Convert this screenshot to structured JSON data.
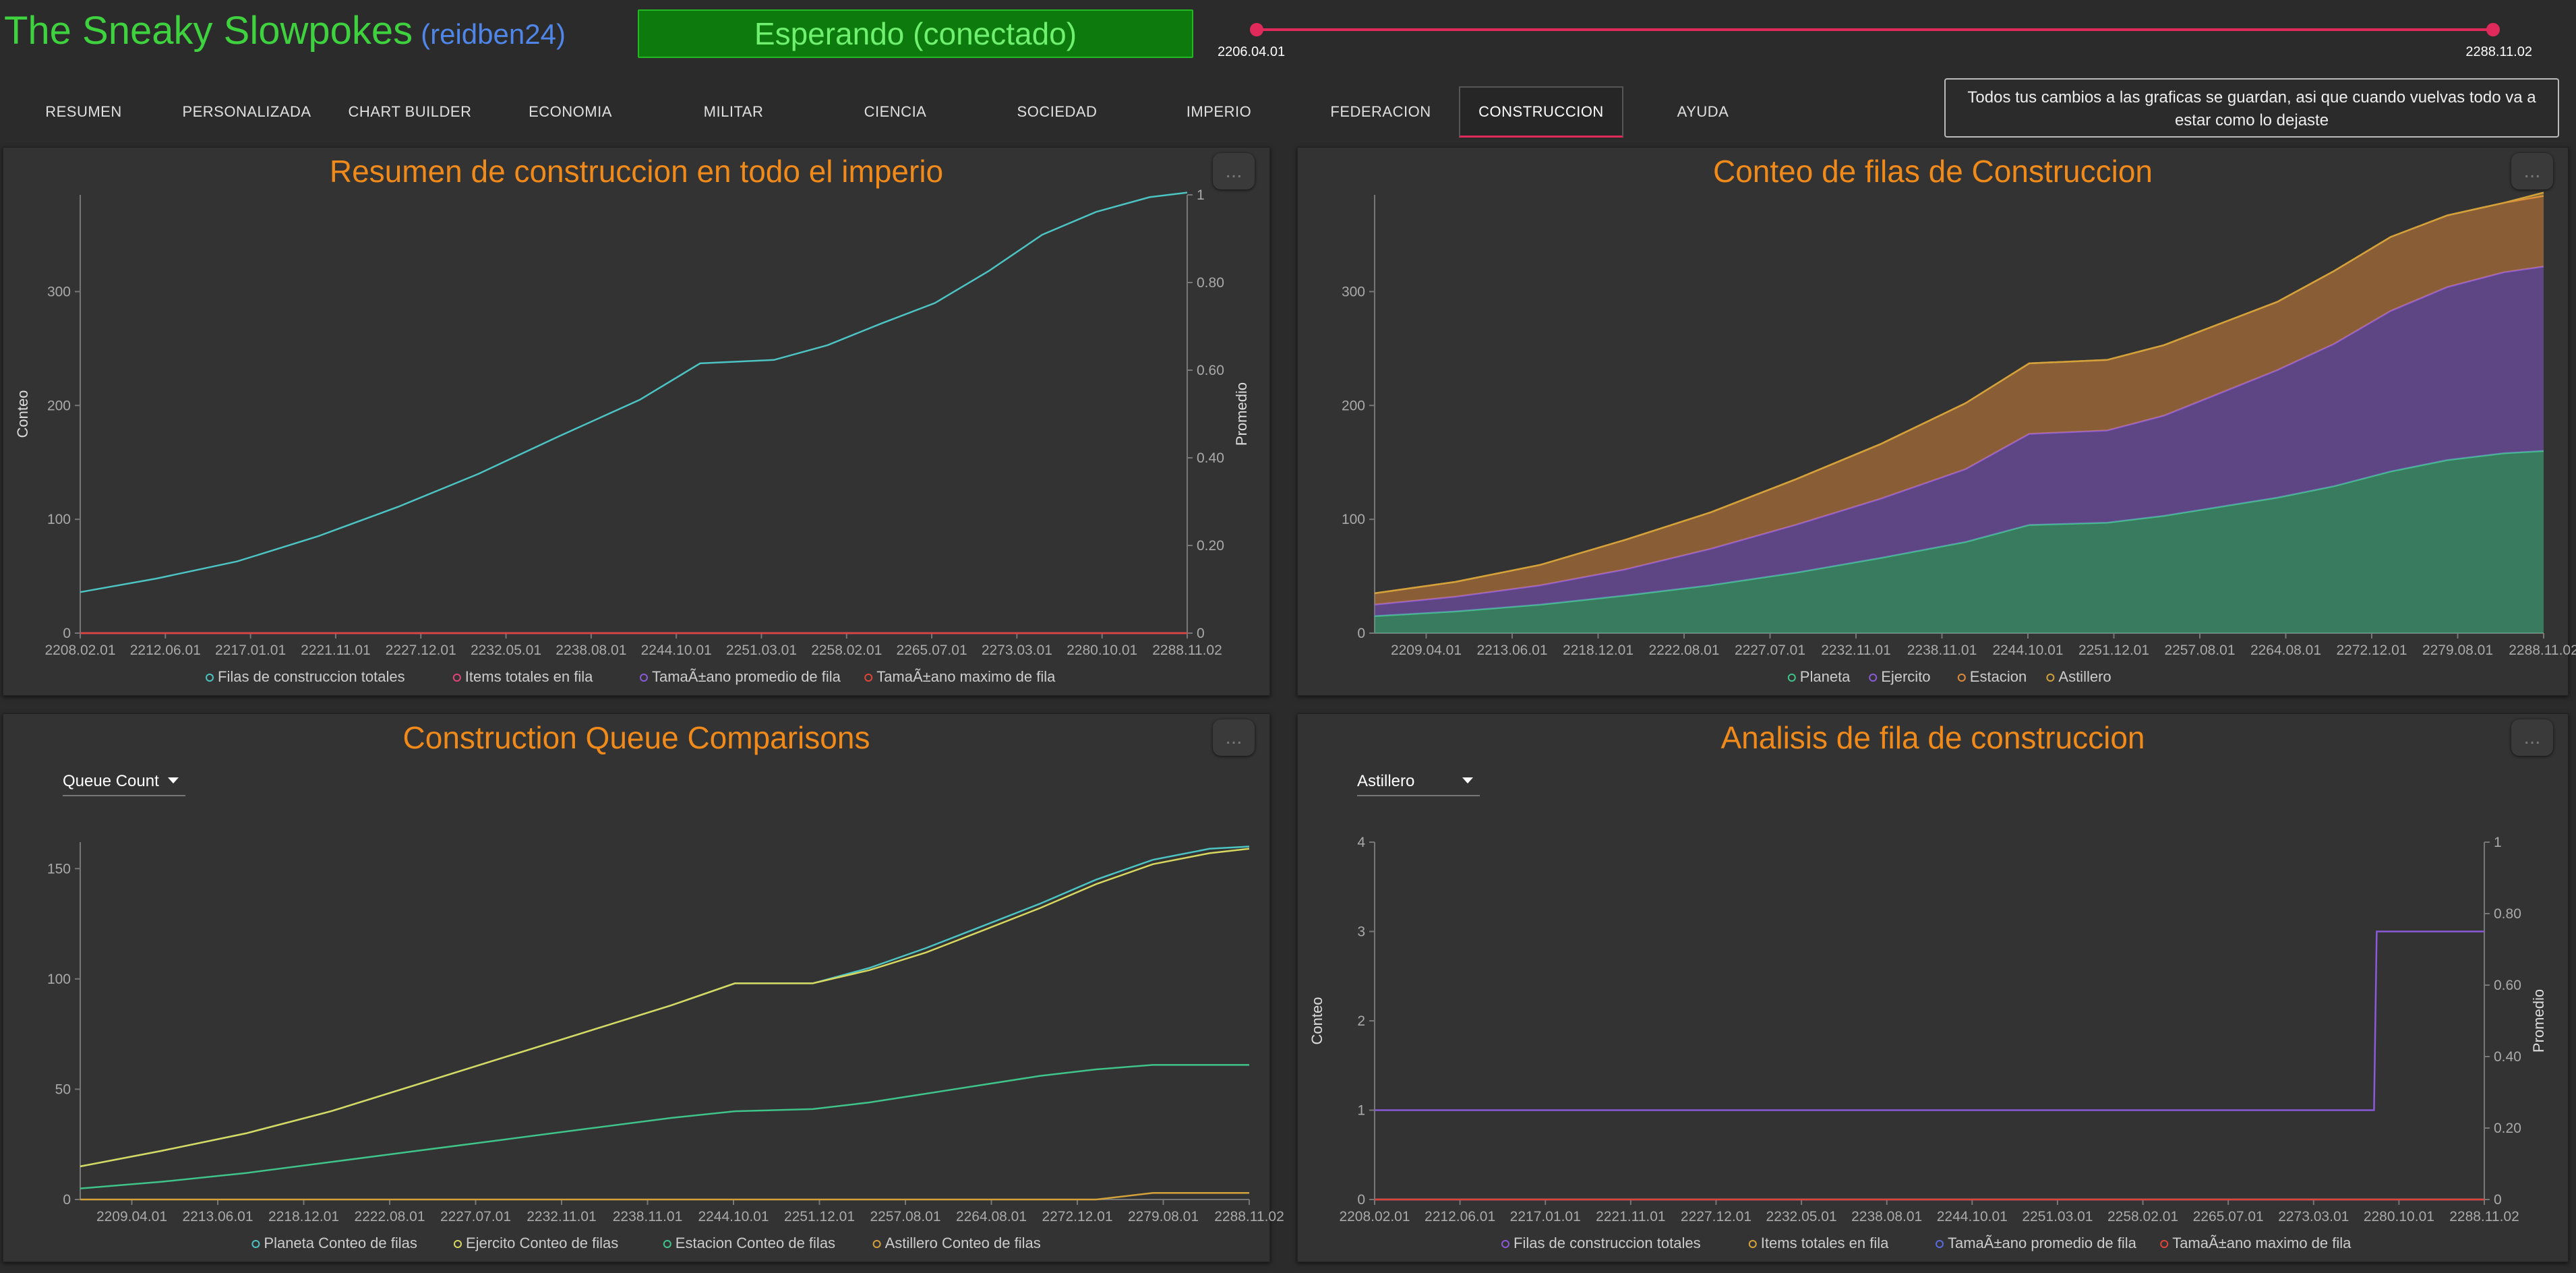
{
  "header": {
    "title": "The Sneaky Slowpokes",
    "user": "(reidben24)",
    "status_button": "Esperando (conectado)",
    "range": {
      "start": "2206.04.01",
      "end": "2288.11.02"
    }
  },
  "nav": {
    "tabs": [
      "RESUMEN",
      "PERSONALIZADA",
      "CHART BUILDER",
      "ECONOMIA",
      "MILITAR",
      "CIENCIA",
      "SOCIEDAD",
      "IMPERIO",
      "FEDERACION",
      "CONSTRUCCION",
      "AYUDA"
    ],
    "active": "CONSTRUCCION"
  },
  "notice": "Todos tus cambios a las graficas se guardan, asi que cuando vuelvas todo va a estar como lo dejaste",
  "more_label": "...",
  "colors": {
    "teal": "#4dc4c4",
    "pink": "#e0457a",
    "purple": "#8a5ad8",
    "red": "#e0453a",
    "green": "#3fc48a",
    "orange": "#e08a3a",
    "gold": "#d4a23a",
    "yellow": "#d8d860",
    "blue": "#5a6ae0"
  },
  "panels": {
    "p1": {
      "title": "Resumen de construccion en todo el imperio"
    },
    "p2": {
      "title": "Conteo de filas de Construccion"
    },
    "p3": {
      "title": "Construction Queue Comparisons",
      "dropdown": "Queue Count"
    },
    "p4": {
      "title": "Analisis de fila de construccion",
      "dropdown": "Astillero"
    }
  },
  "chart_data": [
    {
      "type": "line",
      "title": "Resumen de construccion en todo el imperio",
      "ylabel": "Conteo",
      "y2label": "Promedio",
      "ylim": [
        0,
        385
      ],
      "y2lim": [
        0,
        1
      ],
      "yticks": [
        "0",
        "100",
        "200",
        "300"
      ],
      "y2ticks": [
        "0",
        "0.20",
        "0.40",
        "0.60",
        "0.80",
        "1"
      ],
      "xticks": [
        "2208.02.01",
        "2212.06.01",
        "2217.01.01",
        "2221.11.01",
        "2227.12.01",
        "2232.05.01",
        "2238.08.01",
        "2244.10.01",
        "2251.03.01",
        "2258.02.01",
        "2265.07.01",
        "2273.03.01",
        "2280.10.01",
        "2288.11.02"
      ],
      "x": [
        2206.3,
        2212,
        2218,
        2224,
        2230,
        2236,
        2242,
        2248,
        2252.5,
        2258,
        2262,
        2266,
        2270,
        2274,
        2278,
        2282,
        2286,
        2288.8
      ],
      "series": [
        {
          "name": "Filas de construccion totales",
          "color": "#4dc4c4",
          "values": [
            36,
            48,
            63,
            85,
            111,
            140,
            173,
            205,
            237,
            240,
            253,
            272,
            290,
            318,
            350,
            370,
            383,
            387
          ]
        },
        {
          "name": "Items totales en fila",
          "color": "#e0457a",
          "values": [
            0,
            0,
            0,
            0,
            0,
            0,
            0,
            0,
            0,
            0,
            0,
            0,
            0,
            0,
            0,
            0,
            0,
            0
          ]
        },
        {
          "name": "TamaÃ±ano promedio de fila",
          "color": "#8a5ad8",
          "values": [
            0,
            0,
            0,
            0,
            0,
            0,
            0,
            0,
            0,
            0,
            0,
            0,
            0,
            0,
            0,
            0,
            0,
            0
          ]
        },
        {
          "name": "TamaÃ±ano maximo de fila",
          "color": "#e0453a",
          "values": [
            0,
            0,
            0,
            0,
            0,
            0,
            0,
            0,
            0,
            0,
            0,
            0,
            0,
            0,
            0,
            0,
            0,
            0
          ]
        }
      ]
    },
    {
      "type": "area",
      "title": "Conteo de filas de Construccion",
      "ylim": [
        0,
        385
      ],
      "yticks": [
        "0",
        "100",
        "200",
        "300"
      ],
      "xticks": [
        "2209.04.01",
        "2213.06.01",
        "2218.12.01",
        "2222.08.01",
        "2227.07.01",
        "2232.11.01",
        "2238.11.01",
        "2244.10.01",
        "2251.12.01",
        "2257.08.01",
        "2264.08.01",
        "2272.12.01",
        "2279.08.01",
        "2288.11.02"
      ],
      "x": [
        2206.3,
        2212,
        2218,
        2224,
        2230,
        2236,
        2242,
        2248,
        2252.5,
        2258,
        2262,
        2266,
        2270,
        2274,
        2278,
        2282,
        2286,
        2288.8
      ],
      "series": [
        {
          "name": "Planeta",
          "color": "#3fc48a",
          "values": [
            15,
            19,
            25,
            33,
            42,
            53,
            66,
            80,
            95,
            97,
            103,
            111,
            119,
            129,
            142,
            152,
            158,
            160
          ]
        },
        {
          "name": "Ejercito",
          "color": "#8a5ad8",
          "values": [
            10,
            13,
            17,
            23,
            32,
            42,
            52,
            64,
            80,
            81,
            88,
            100,
            112,
            125,
            141,
            152,
            159,
            162
          ]
        },
        {
          "name": "Estacion",
          "color": "#e08a3a",
          "values": [
            10,
            13,
            18,
            26,
            32,
            40,
            48,
            58,
            62,
            62,
            62,
            61,
            60,
            64,
            65,
            63,
            61,
            62
          ]
        },
        {
          "name": "Astillero",
          "color": "#d4a23a",
          "values": [
            0,
            0,
            0,
            0,
            0,
            0,
            0,
            0,
            0,
            0,
            0,
            0,
            0,
            0,
            0,
            0,
            0,
            3
          ]
        }
      ]
    },
    {
      "type": "line",
      "title": "Construction Queue Comparisons",
      "ylim": [
        0,
        162
      ],
      "yticks": [
        "0",
        "50",
        "100",
        "150"
      ],
      "xticks": [
        "2209.04.01",
        "2213.06.01",
        "2218.12.01",
        "2222.08.01",
        "2227.07.01",
        "2232.11.01",
        "2238.11.01",
        "2244.10.01",
        "2251.12.01",
        "2257.08.01",
        "2264.08.01",
        "2272.12.01",
        "2279.08.01",
        "2288.11.02"
      ],
      "x": [
        2206.3,
        2212,
        2218,
        2224,
        2230,
        2236,
        2242,
        2248,
        2252.5,
        2258,
        2262,
        2266,
        2270,
        2274,
        2278,
        2282,
        2286,
        2288.8
      ],
      "series": [
        {
          "name": "Planeta Conteo de filas",
          "color": "#4dc4c4",
          "values": [
            15,
            22,
            30,
            40,
            52,
            64,
            76,
            88,
            98,
            98,
            105,
            114,
            124,
            134,
            145,
            154,
            159,
            160
          ]
        },
        {
          "name": "Ejercito Conteo de filas",
          "color": "#d8d860",
          "values": [
            15,
            22,
            30,
            40,
            52,
            64,
            76,
            88,
            98,
            98,
            104,
            112,
            122,
            132,
            143,
            152,
            157,
            159
          ]
        },
        {
          "name": "Estacion Conteo de filas",
          "color": "#3fc48a",
          "values": [
            5,
            8,
            12,
            17,
            22,
            27,
            32,
            37,
            40,
            41,
            44,
            48,
            52,
            56,
            59,
            61,
            61,
            61
          ]
        },
        {
          "name": "Astillero Conteo de filas",
          "color": "#d4a23a",
          "values": [
            0,
            0,
            0,
            0,
            0,
            0,
            0,
            0,
            0,
            0,
            0,
            0,
            0,
            0,
            0,
            3,
            3,
            3
          ]
        }
      ]
    },
    {
      "type": "line",
      "title": "Analisis de fila de construccion",
      "ylabel": "Conteo",
      "y2label": "Promedio",
      "ylim": [
        0,
        4
      ],
      "y2lim": [
        0,
        1
      ],
      "yticks": [
        "0",
        "1",
        "2",
        "3",
        "4"
      ],
      "y2ticks": [
        "0",
        "0.20",
        "0.40",
        "0.60",
        "0.80",
        "1"
      ],
      "xticks": [
        "2208.02.01",
        "2212.06.01",
        "2217.01.01",
        "2221.11.01",
        "2227.12.01",
        "2232.05.01",
        "2238.08.01",
        "2244.10.01",
        "2251.03.01",
        "2258.02.01",
        "2265.07.01",
        "2273.03.01",
        "2280.10.01",
        "2288.11.02"
      ],
      "x": [
        2206.3,
        2280.6,
        2280.8,
        2288.8
      ],
      "series": [
        {
          "name": "Filas de construccion totales",
          "color": "#8a5ad8",
          "values": [
            1,
            1,
            3,
            3
          ]
        },
        {
          "name": "Items totales en fila",
          "color": "#d4a23a",
          "values": [
            0,
            0,
            0,
            0
          ]
        },
        {
          "name": "TamaÃ±ano promedio de fila",
          "color": "#5a6ae0",
          "values": [
            0,
            0,
            0,
            0
          ]
        },
        {
          "name": "TamaÃ±ano maximo de fila",
          "color": "#e0453a",
          "values": [
            0,
            0,
            0,
            0
          ]
        }
      ]
    }
  ]
}
